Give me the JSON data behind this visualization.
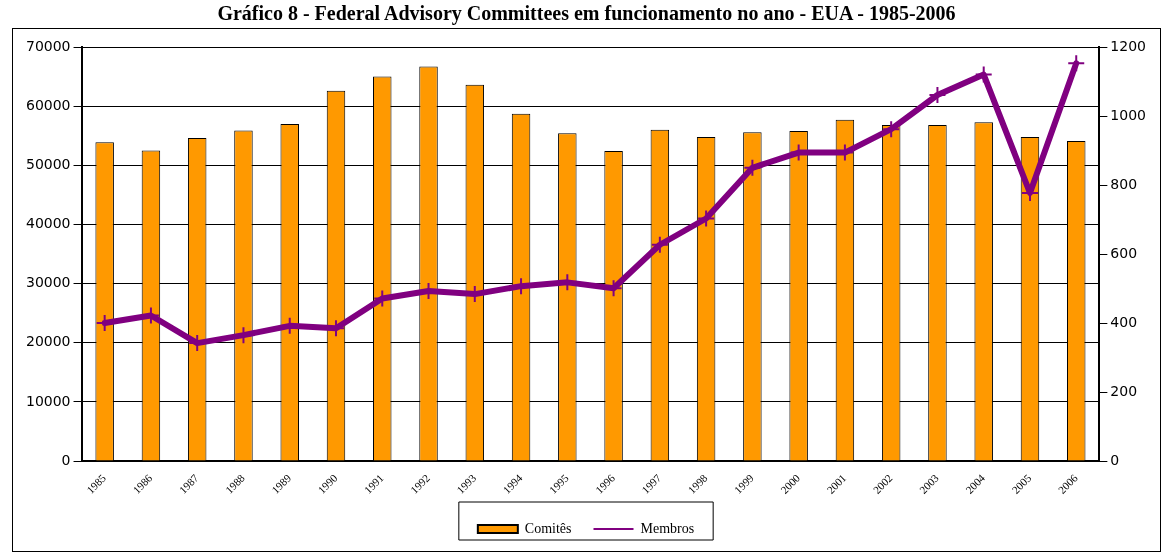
{
  "chart_data": {
    "type": "bar",
    "title": "Gráfico 8 - Federal Advisory Committees em funcionamento no ano - EUA - 1985-2006",
    "categories": [
      "1985",
      "1986",
      "1987",
      "1988",
      "1989",
      "1990",
      "1991",
      "1992",
      "1993",
      "1994",
      "1995",
      "1996",
      "1997",
      "1998",
      "1999",
      "2000",
      "2001",
      "2002",
      "2003",
      "2004",
      "2005",
      "2006"
    ],
    "series": [
      {
        "name": "Comitês",
        "color": "#ff9900",
        "values": [
          53900,
          52500,
          54600,
          55900,
          57000,
          62600,
          65000,
          66700,
          63600,
          58700,
          55400,
          52400,
          56000,
          54800,
          55600,
          55800,
          57700,
          56800,
          56800,
          57300,
          54800,
          54100
        ]
      },
      {
        "name": "Membros",
        "type": "line",
        "axis": "y2",
        "color": "#800080",
        "marker": "cross",
        "values": [
          400,
          422,
          342,
          365,
          392,
          385,
          471,
          493,
          484,
          507,
          518,
          501,
          627,
          703,
          850,
          894,
          894,
          962,
          1061,
          1120,
          777,
          1153
        ]
      }
    ],
    "ylim": [
      0,
      70000
    ],
    "yticks": [
      0,
      10000,
      20000,
      30000,
      40000,
      50000,
      60000,
      70000
    ],
    "y2lim": [
      0,
      1200
    ],
    "y2ticks": [
      0,
      200,
      400,
      600,
      800,
      1000,
      1200
    ],
    "grid": "y",
    "legend": "bottom"
  }
}
